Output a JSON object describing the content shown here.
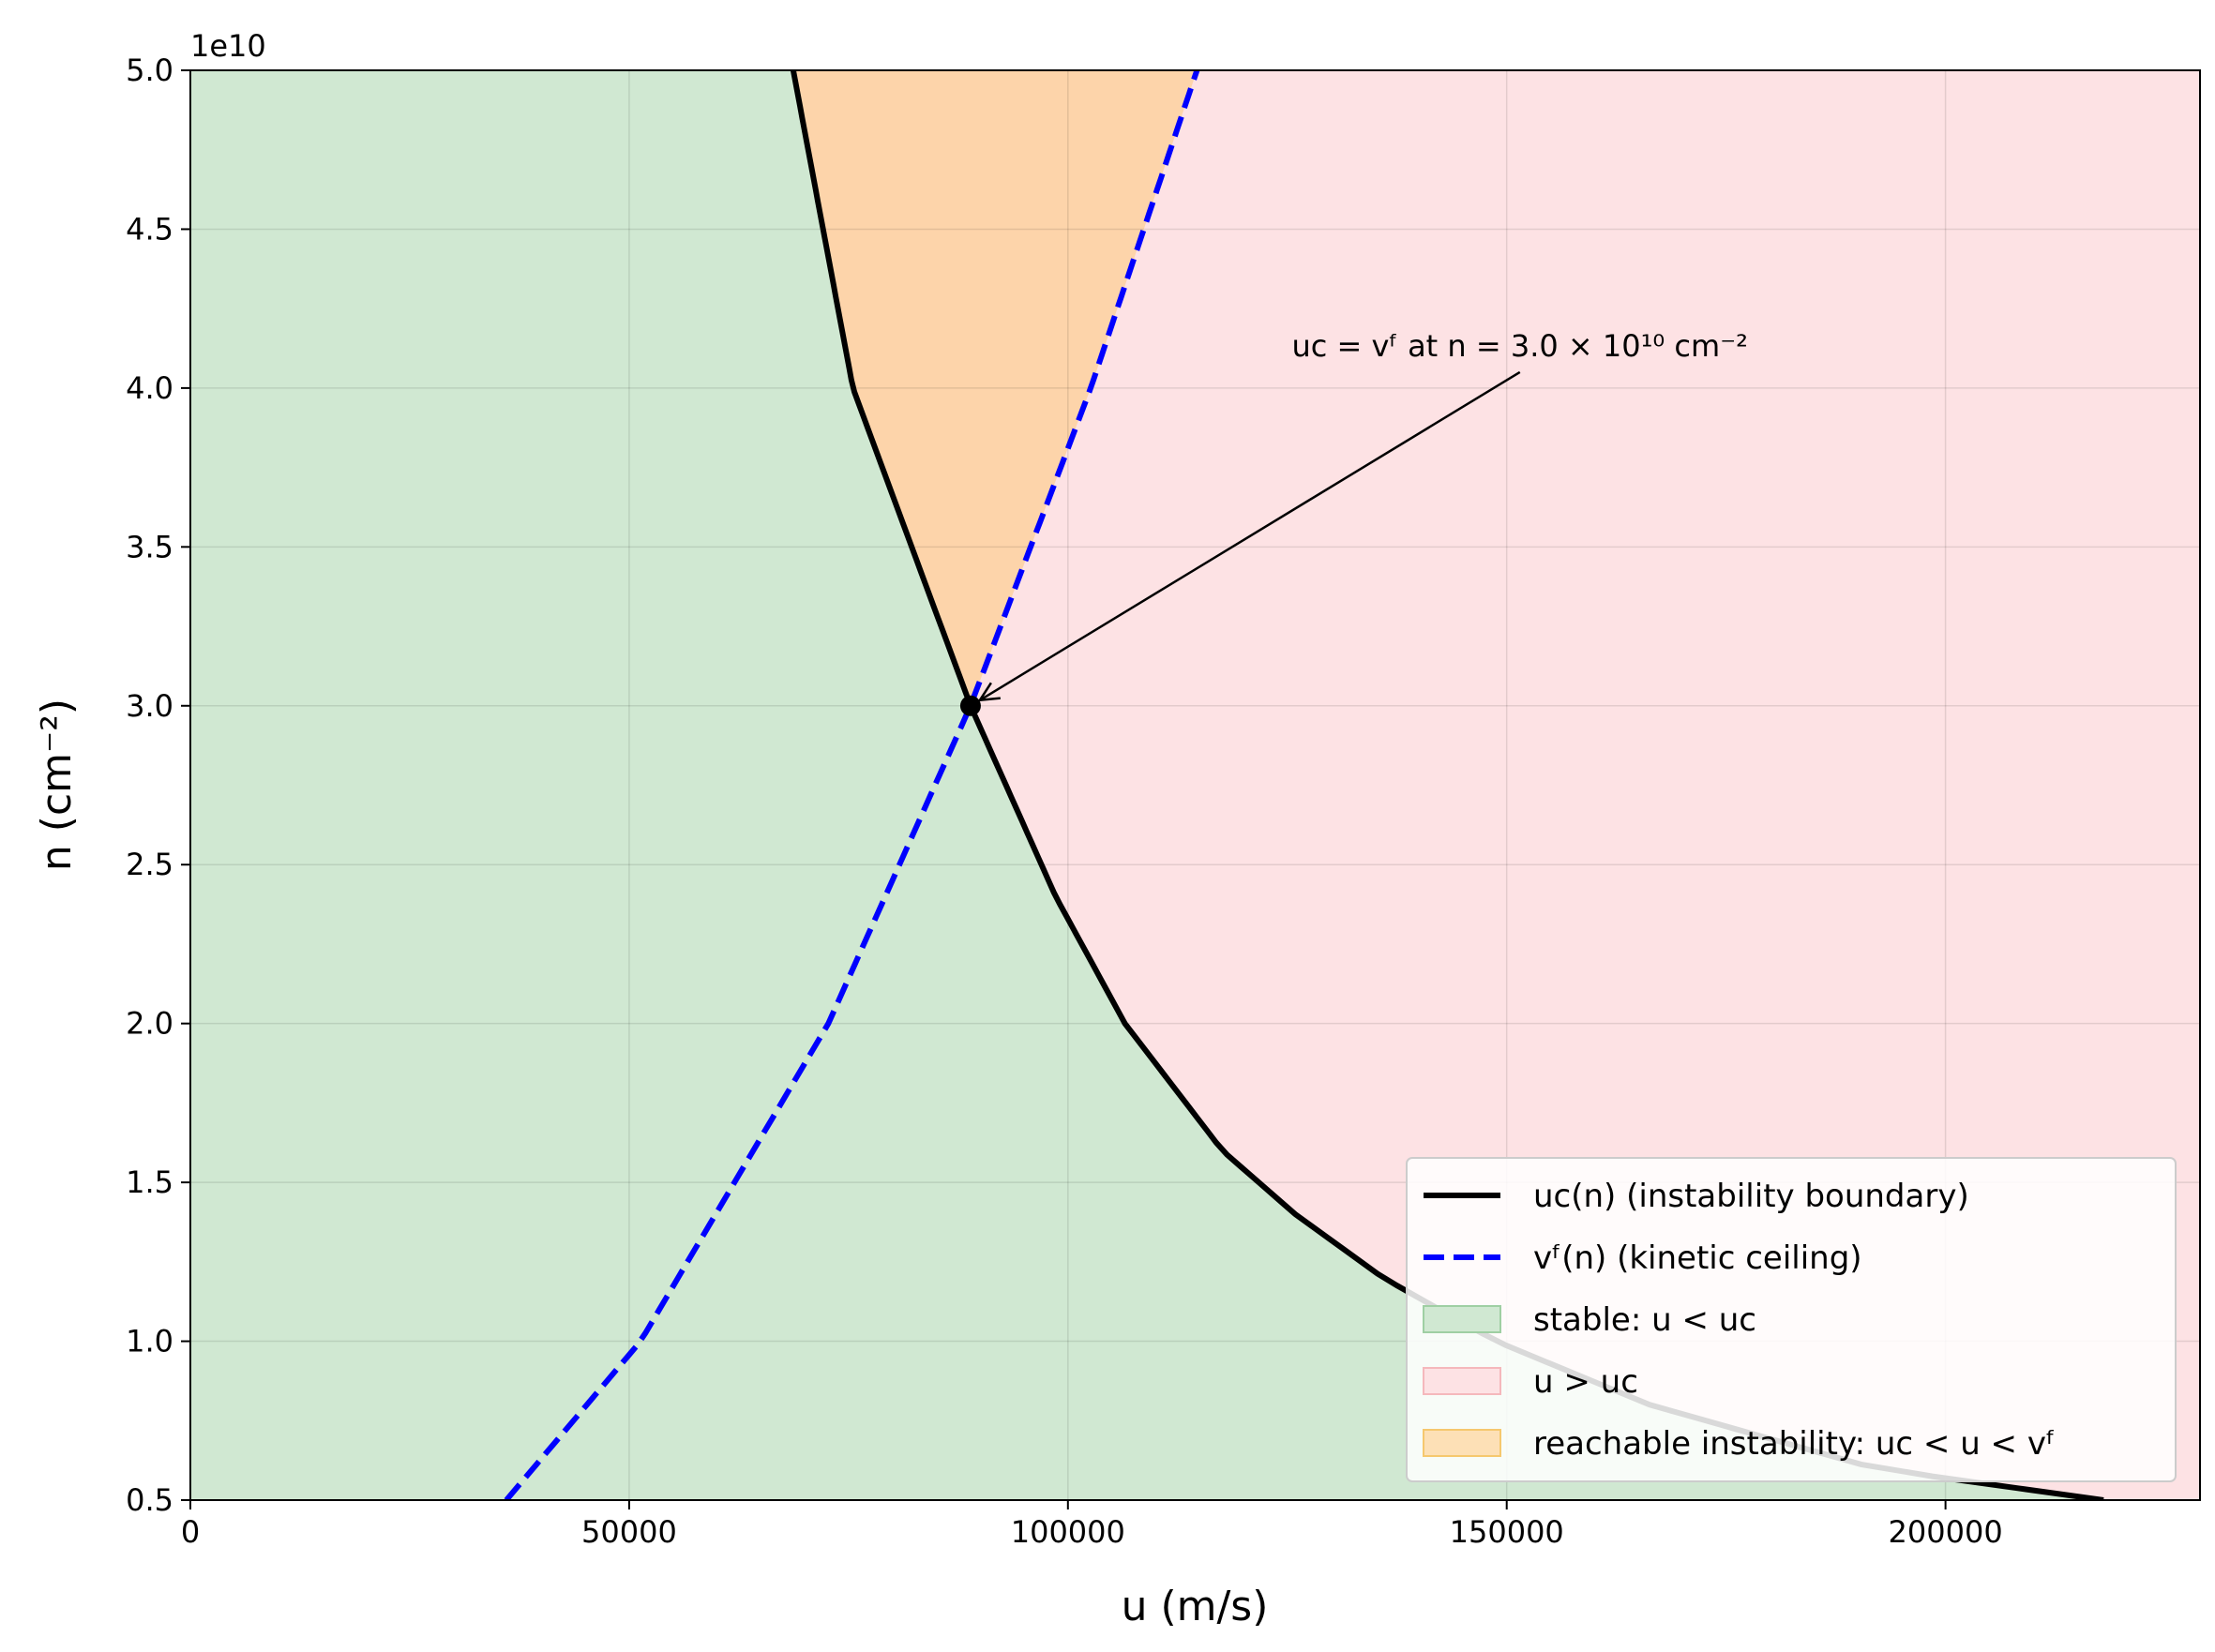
{
  "chart_data": {
    "type": "line",
    "title": "",
    "xlabel": "u (m/s)",
    "ylabel": "n (cm⁻²)",
    "x_ticks": [
      "0",
      "50000",
      "100000",
      "150000",
      "200000"
    ],
    "y_ticks": [
      "0.5",
      "1.0",
      "1.5",
      "2.0",
      "2.5",
      "3.0",
      "3.5",
      "4.0",
      "4.5",
      "5.0"
    ],
    "y_offset_label": "1e10",
    "xlim": [
      0,
      229000
    ],
    "ylim": [
      5000000000.0,
      50000000000.0
    ],
    "grid": true,
    "legend_position": "lower-right",
    "series": [
      {
        "name": "uᴄ(n)  (instability boundary)",
        "color": "#000000",
        "style": "solid",
        "points": [
          [
            68700,
            50000000000.0
          ],
          [
            75500,
            40000000000.0
          ],
          [
            88900,
            30000000000.0
          ],
          [
            98600,
            24000000000.0
          ],
          [
            106500,
            20000000000.0
          ],
          [
            117600,
            16000000000.0
          ],
          [
            125900,
            14000000000.0
          ],
          [
            135900,
            12000000000.0
          ],
          [
            148800,
            10000000000.0
          ],
          [
            166300,
            8000000000.0
          ],
          [
            192000,
            6000000000.0
          ],
          [
            218000,
            5000000000.0
          ]
        ]
      },
      {
        "name": "vᶠ(n)  (kinetic ceiling)",
        "color": "#0000ff",
        "style": "dashed",
        "points": [
          [
            36000,
            5000000000.0
          ],
          [
            51300,
            10000000000.0
          ],
          [
            72700,
            20000000000.0
          ],
          [
            88900,
            30000000000.0
          ],
          [
            102600,
            40000000000.0
          ],
          [
            114700,
            50000000000.0
          ]
        ]
      }
    ],
    "regions": [
      {
        "name": "stable: u < uᴄ",
        "color": "#d0e8d2"
      },
      {
        "name": "u > uᴄ",
        "color": "#fde2e4"
      },
      {
        "name": "reachable instability: uᴄ < u < vᶠ",
        "color": "#fdd4aa"
      }
    ],
    "marker": {
      "x": 88900,
      "y": 30000000000.0
    },
    "annotation": {
      "text": "uᴄ = vᶠ at n = 3.0 × 10¹⁰ cm⁻²",
      "text_x": 125500,
      "text_y": 41000000000.0,
      "arrow_from": [
        151500,
        40500000000.0
      ],
      "arrow_to": [
        88900,
        30000000000.0
      ]
    }
  }
}
